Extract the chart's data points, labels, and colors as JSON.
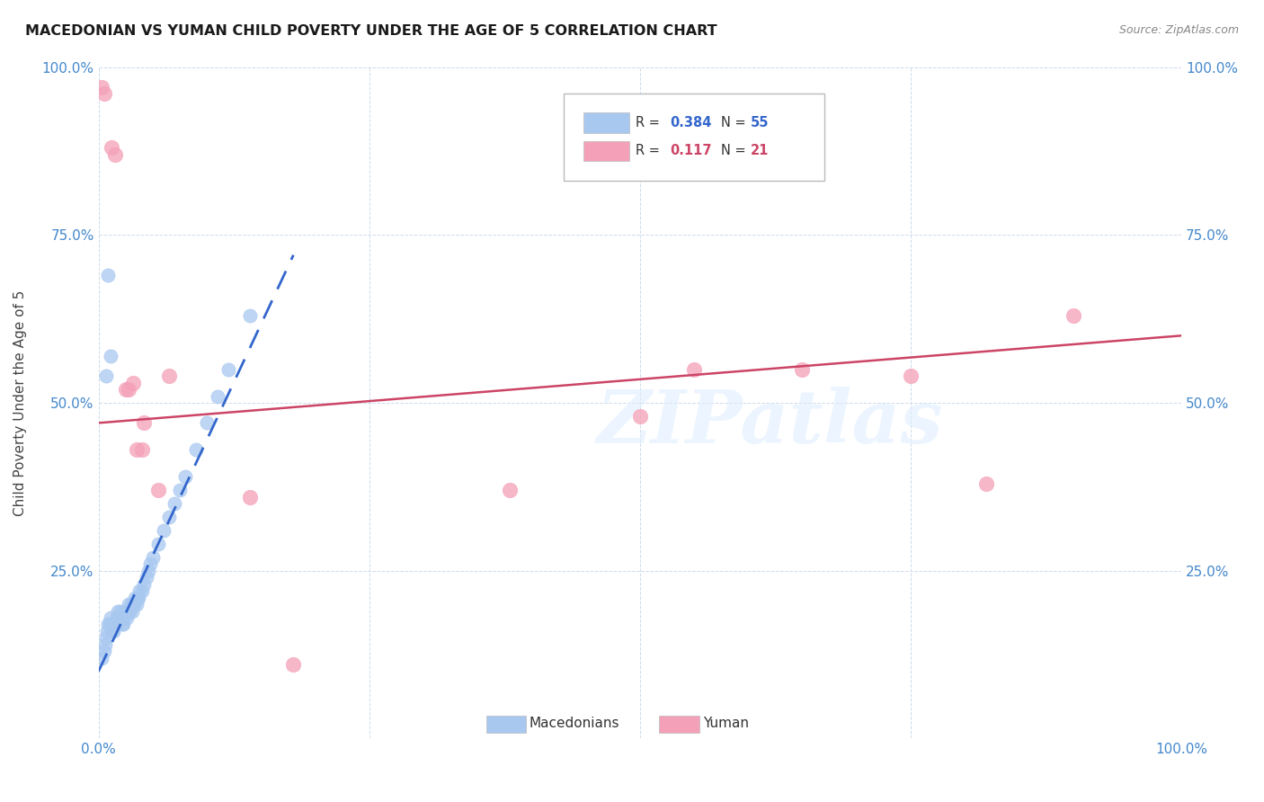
{
  "title": "MACEDONIAN VS YUMAN CHILD POVERTY UNDER THE AGE OF 5 CORRELATION CHART",
  "source": "Source: ZipAtlas.com",
  "ylabel": "Child Poverty Under the Age of 5",
  "xlim": [
    0,
    1.0
  ],
  "ylim": [
    0,
    1.0
  ],
  "xticks": [
    0.0,
    0.25,
    0.5,
    0.75,
    1.0
  ],
  "xticklabels": [
    "0.0%",
    "",
    "",
    "",
    "100.0%"
  ],
  "yticks": [
    0.0,
    0.25,
    0.5,
    0.75,
    1.0
  ],
  "yticklabels": [
    "",
    "25.0%",
    "50.0%",
    "75.0%",
    "100.0%"
  ],
  "macedonian_color": "#a8c8f0",
  "yuman_color": "#f4a0b8",
  "macedonian_trend_color": "#3366cc",
  "yuman_trend_color": "#cc4466",
  "legend_R_mac": "0.384",
  "legend_N_mac": "55",
  "legend_R_yum": "0.117",
  "legend_N_yum": "21",
  "watermark": "ZIPatlas",
  "macedonian_x": [
    0.003,
    0.005,
    0.006,
    0.007,
    0.008,
    0.009,
    0.01,
    0.011,
    0.012,
    0.013,
    0.014,
    0.015,
    0.016,
    0.017,
    0.018,
    0.019,
    0.02,
    0.021,
    0.022,
    0.023,
    0.024,
    0.025,
    0.026,
    0.027,
    0.028,
    0.029,
    0.03,
    0.031,
    0.032,
    0.033,
    0.034,
    0.035,
    0.036,
    0.037,
    0.038,
    0.04,
    0.042,
    0.044,
    0.046,
    0.048,
    0.05,
    0.055,
    0.06,
    0.065,
    0.07,
    0.075,
    0.08,
    0.09,
    0.1,
    0.11,
    0.12,
    0.14,
    0.007,
    0.009,
    0.011
  ],
  "macedonian_y": [
    0.12,
    0.13,
    0.14,
    0.15,
    0.16,
    0.17,
    0.17,
    0.18,
    0.17,
    0.16,
    0.16,
    0.17,
    0.17,
    0.18,
    0.19,
    0.18,
    0.19,
    0.18,
    0.17,
    0.17,
    0.18,
    0.19,
    0.18,
    0.19,
    0.2,
    0.19,
    0.2,
    0.19,
    0.2,
    0.2,
    0.21,
    0.2,
    0.21,
    0.21,
    0.22,
    0.22,
    0.23,
    0.24,
    0.25,
    0.26,
    0.27,
    0.29,
    0.31,
    0.33,
    0.35,
    0.37,
    0.39,
    0.43,
    0.47,
    0.51,
    0.55,
    0.63,
    0.54,
    0.69,
    0.57
  ],
  "yuman_x": [
    0.003,
    0.005,
    0.012,
    0.015,
    0.025,
    0.028,
    0.032,
    0.035,
    0.04,
    0.042,
    0.055,
    0.065,
    0.14,
    0.18,
    0.38,
    0.5,
    0.55,
    0.65,
    0.75,
    0.82,
    0.9
  ],
  "yuman_y": [
    0.97,
    0.96,
    0.88,
    0.87,
    0.52,
    0.52,
    0.53,
    0.43,
    0.43,
    0.47,
    0.37,
    0.54,
    0.36,
    0.11,
    0.37,
    0.48,
    0.55,
    0.55,
    0.54,
    0.38,
    0.63
  ],
  "mac_trend_x0": 0.0,
  "mac_trend_x1": 0.18,
  "mac_trend_y0": 0.1,
  "mac_trend_y1": 0.72,
  "yum_trend_x0": 0.0,
  "yum_trend_x1": 1.0,
  "yum_trend_y0": 0.47,
  "yum_trend_y1": 0.6
}
